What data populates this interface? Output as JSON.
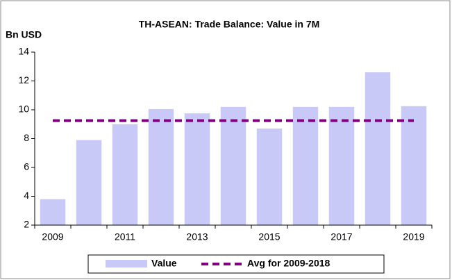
{
  "chart_data": {
    "type": "bar",
    "title": "TH-ASEAN: Trade Balance: Value in 7M",
    "y_label": "Bn USD",
    "categories": [
      "2009",
      null,
      "2011",
      null,
      "2013",
      null,
      "2015",
      null,
      "2017",
      null,
      "2019"
    ],
    "series": [
      {
        "name": "Value",
        "type": "bar",
        "color": "#c9c9f7",
        "values": [
          3.8,
          7.9,
          9.0,
          10.05,
          9.75,
          10.2,
          8.7,
          10.2,
          10.2,
          12.6,
          10.25
        ]
      },
      {
        "name": "Avg for 2009-2018",
        "type": "line",
        "dashed": true,
        "color": "#800080",
        "values": [
          9.25,
          9.25,
          9.25,
          9.25,
          9.25,
          9.25,
          9.25,
          9.25,
          9.25,
          9.25,
          9.25
        ]
      }
    ],
    "ylim": [
      2,
      14
    ],
    "yticks": [
      2,
      4,
      6,
      8,
      10,
      12,
      14
    ],
    "grid": false,
    "legend": "bottom"
  }
}
